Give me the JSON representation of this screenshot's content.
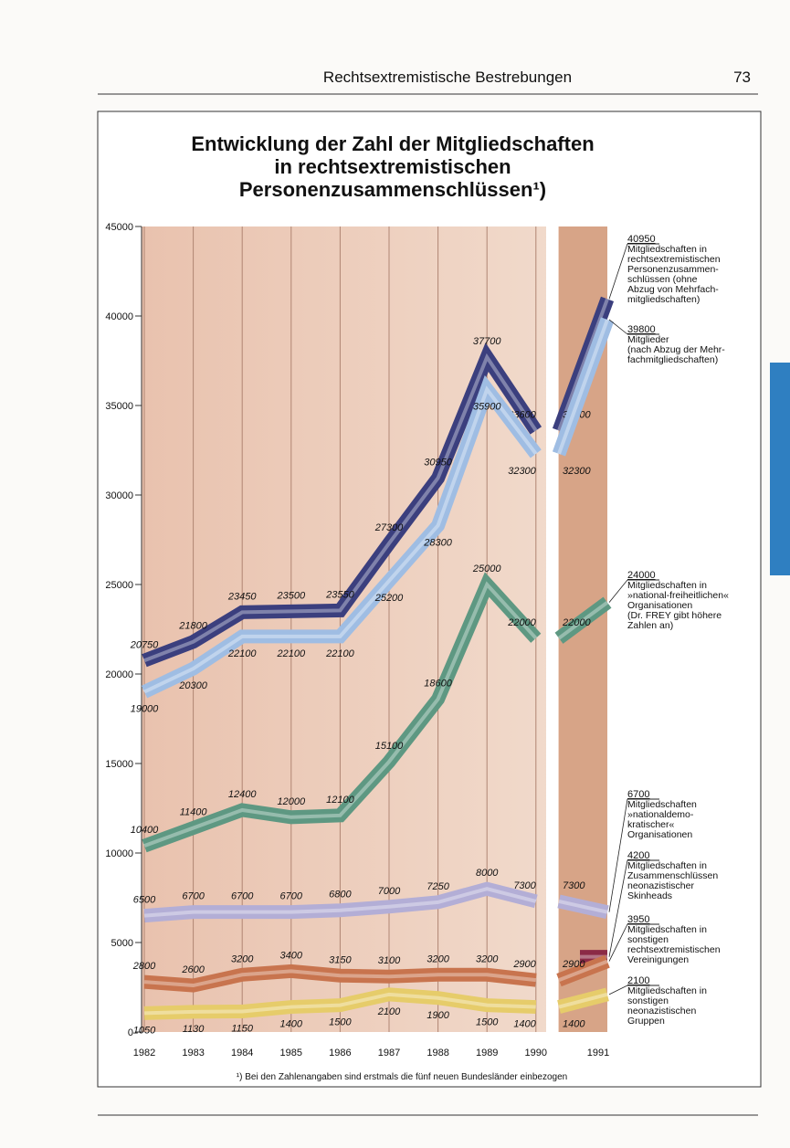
{
  "header": {
    "title": "Rechtsextremistische Bestrebungen",
    "page_number": "73"
  },
  "chart_data": {
    "type": "line",
    "title": "Entwicklung der Zahl der Mitgliedschaften\nin rechtsextremistischen\nPersonenzusammenschlüssen¹)",
    "categories": [
      "1982",
      "1983",
      "1984",
      "1985",
      "1986",
      "1987",
      "1988",
      "1989",
      "1990",
      null,
      null,
      "1991"
    ],
    "ylim": [
      0,
      45000
    ],
    "yticks": [
      0,
      5000,
      10000,
      15000,
      20000,
      25000,
      30000,
      35000,
      40000,
      45000
    ],
    "series": [
      {
        "name": "Mitgliedschaften in\nrechtsextremistischen\nPersonenzusammen-\nschlüssen (ohne\nAbzug von Mehrfach-\nmitgliedschaften)",
        "color": "#3b3f7e",
        "values": [
          20750,
          21800,
          23450,
          23500,
          23550,
          27300,
          30950,
          37700,
          33600,
          null,
          33600,
          40950
        ]
      },
      {
        "name": "Mitglieder\n(nach Abzug der Mehr-\nfachmitgliedschaften)",
        "color": "#9fbde3",
        "values": [
          19000,
          20300,
          22100,
          22100,
          22100,
          25200,
          28300,
          35900,
          32300,
          null,
          32300,
          39800
        ]
      },
      {
        "name": "Mitgliedschaften in\n»national-freiheitlichen«\nOrganisationen\n(Dr. FREY gibt höhere\nZahlen an)",
        "color": "#5e9882",
        "values": [
          10400,
          11400,
          12400,
          12000,
          12100,
          15100,
          18600,
          25000,
          22000,
          null,
          22000,
          24000
        ]
      },
      {
        "name": "Mitgliedschaften\n»nationaldemo-\nkratischer«\nOrganisationen",
        "color": "#b3aed6",
        "values": [
          6500,
          6700,
          6700,
          6700,
          6800,
          7000,
          7250,
          8000,
          7300,
          null,
          7300,
          6700
        ]
      },
      {
        "name": "Mitgliedschaften in\nZusammenschlüssen\nneonazistischer\nSkinheads",
        "color": "#8b2a46",
        "values": [
          null,
          null,
          null,
          null,
          null,
          null,
          null,
          null,
          null,
          null,
          null,
          4200
        ]
      },
      {
        "name": "Mitgliedschaften in\nsonstigen\nrechtsextremistischen\nVereinigungen",
        "color": "#c8744e",
        "values": [
          2800,
          2600,
          3200,
          3400,
          3150,
          3100,
          3200,
          3200,
          2900,
          null,
          2900,
          3950
        ]
      },
      {
        "name": "Mitgliedschaften in\nsonstigen\nneonazistischen\nGruppen",
        "color": "#e6cc6a",
        "values": [
          1050,
          1130,
          1150,
          1400,
          1500,
          2100,
          1900,
          1500,
          1400,
          null,
          1400,
          2100
        ]
      }
    ]
  },
  "footnote": "¹) Bei den Zahlenangaben sind erstmals die fünf neuen Bundesländer einbezogen"
}
